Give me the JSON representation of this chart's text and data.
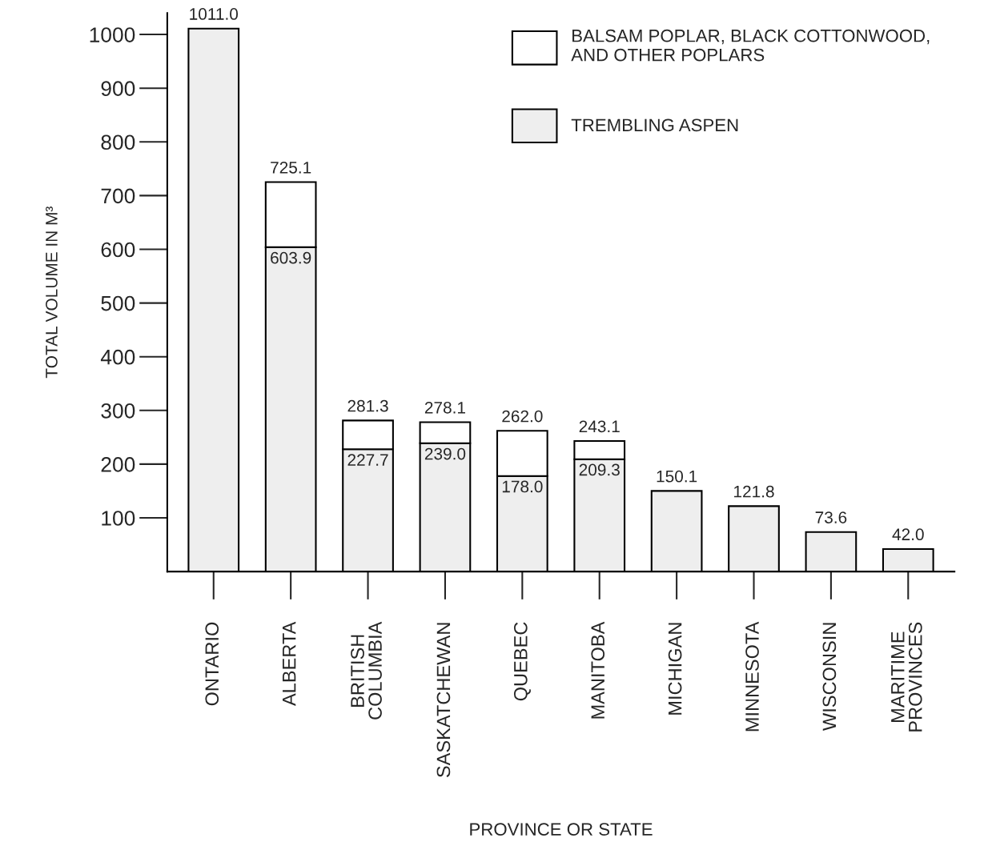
{
  "chart_data": {
    "type": "bar",
    "stacked": true,
    "xlabel": "PROVINCE OR STATE",
    "ylabel": "TOTAL VOLUME IN M³",
    "categories": [
      "ONTARIO",
      "ALBERTA",
      "BRITISH\nCOLUMBIA",
      "SASKATCHEWAN",
      "QUEBEC",
      "MANITOBA",
      "MICHIGAN",
      "MINNESOTA",
      "WISCONSIN",
      "MARITIME\nPROVINCES"
    ],
    "series": [
      {
        "name": "TREMBLING ASPEN",
        "color": "#eeeeee",
        "values": [
          1011.0,
          603.9,
          227.7,
          239.0,
          178.0,
          209.3,
          150.1,
          121.8,
          73.6,
          42.0
        ],
        "value_labels": [
          null,
          "603.9",
          "227.7",
          "239.0",
          "178.0",
          "209.3",
          null,
          null,
          null,
          null
        ]
      },
      {
        "name": "BALSAM POPLAR, BLACK COTTONWOOD,\nAND OTHER POPLARS",
        "color": "#ffffff",
        "values": [
          null,
          121.2,
          53.6,
          39.1,
          84.0,
          33.8,
          null,
          null,
          null,
          null
        ]
      }
    ],
    "totals": [
      "1011.0",
      "725.1",
      "281.3",
      "278.1",
      "262.0",
      "243.1",
      "150.1",
      "121.8",
      "73.6",
      "42.0"
    ],
    "ylim": [
      0,
      1040
    ],
    "yticks": [
      100,
      200,
      300,
      400,
      500,
      600,
      700,
      800,
      900,
      1000
    ],
    "grid": false,
    "legend": "top right"
  }
}
